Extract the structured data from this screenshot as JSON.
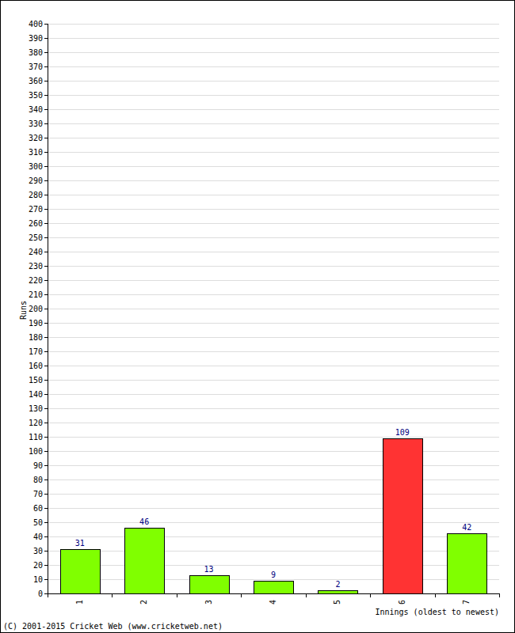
{
  "chart_data": {
    "type": "bar",
    "categories": [
      "1",
      "2",
      "3",
      "4",
      "5",
      "6",
      "7"
    ],
    "values": [
      31,
      46,
      13,
      9,
      2,
      109,
      42
    ],
    "colors": [
      "#80ff00",
      "#80ff00",
      "#80ff00",
      "#80ff00",
      "#80ff00",
      "#ff3333",
      "#80ff00"
    ],
    "x_label": "Innings (oldest to newest)",
    "y_label": "Runs",
    "annotations": [
      "(C) 2001-2015 Cricket Web (www.cricketweb.net)"
    ],
    "ylim": [
      0,
      400
    ],
    "yticks": [
      0,
      10,
      20,
      30,
      40,
      50,
      60,
      70,
      80,
      90,
      100,
      110,
      120,
      130,
      140,
      150,
      160,
      170,
      180,
      190,
      200,
      210,
      220,
      230,
      240,
      250,
      260,
      270,
      280,
      290,
      300,
      310,
      320,
      330,
      340,
      350,
      360,
      370,
      380,
      390,
      400
    ],
    "grid": true,
    "data_labels": true
  }
}
